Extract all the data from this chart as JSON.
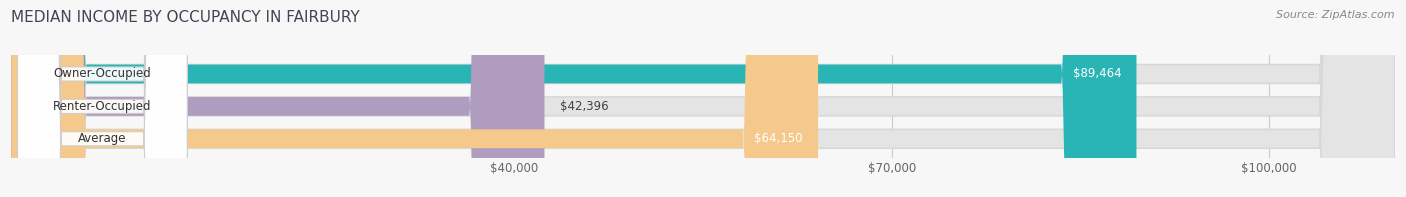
{
  "title": "MEDIAN INCOME BY OCCUPANCY IN FAIRBURY",
  "source": "Source: ZipAtlas.com",
  "categories": [
    "Owner-Occupied",
    "Renter-Occupied",
    "Average"
  ],
  "values": [
    89464,
    42396,
    64150
  ],
  "labels": [
    "$89,464",
    "$42,396",
    "$64,150"
  ],
  "bar_colors": [
    "#29b5b5",
    "#b09cbe",
    "#f5c98c"
  ],
  "background_color": "#f7f7f7",
  "bar_bg_color": "#e4e4e4",
  "xlim": [
    0,
    110000
  ],
  "xticks": [
    40000,
    70000,
    100000
  ],
  "xticklabels": [
    "$40,000",
    "$70,000",
    "$100,000"
  ],
  "title_fontsize": 11,
  "label_fontsize": 8.5,
  "cat_fontsize": 8.5,
  "tick_fontsize": 8.5,
  "source_fontsize": 8,
  "value_label_colors": [
    "#ffffff",
    "#555555",
    "#555555"
  ]
}
